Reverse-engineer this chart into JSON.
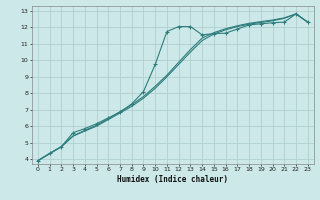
{
  "xlabel": "Humidex (Indice chaleur)",
  "bg_color": "#cce8e8",
  "grid_color": "#aacccc",
  "line_color": "#2e7d7d",
  "xlim": [
    -0.5,
    23.5
  ],
  "ylim": [
    3.7,
    13.3
  ],
  "xticks": [
    0,
    1,
    2,
    3,
    4,
    5,
    6,
    7,
    8,
    9,
    10,
    11,
    12,
    13,
    14,
    15,
    16,
    17,
    18,
    19,
    20,
    21,
    22,
    23
  ],
  "yticks": [
    4,
    5,
    6,
    7,
    8,
    9,
    10,
    11,
    12,
    13
  ],
  "line1_x": [
    0,
    1,
    2,
    3,
    4,
    5,
    6,
    7,
    8,
    9,
    10,
    11,
    12,
    13,
    14,
    15,
    16,
    17,
    18,
    19,
    20,
    21,
    22,
    23
  ],
  "line1_y": [
    3.9,
    4.35,
    4.75,
    5.6,
    5.85,
    6.15,
    6.5,
    6.85,
    7.35,
    8.1,
    9.75,
    11.75,
    12.05,
    12.05,
    11.55,
    11.62,
    11.65,
    11.9,
    12.15,
    12.22,
    12.28,
    12.32,
    12.82,
    12.32
  ],
  "line2_x": [
    0,
    2,
    3,
    4,
    5,
    6,
    7,
    8,
    9,
    10,
    11,
    12,
    13,
    14,
    15,
    16,
    17,
    18,
    19,
    20,
    21,
    22,
    23
  ],
  "line2_y": [
    3.9,
    4.75,
    5.4,
    5.7,
    6.0,
    6.4,
    6.8,
    7.2,
    7.7,
    8.3,
    9.0,
    9.75,
    10.5,
    11.2,
    11.6,
    11.85,
    12.05,
    12.2,
    12.3,
    12.4,
    12.55,
    12.82,
    12.32
  ],
  "line3_x": [
    0,
    2,
    3,
    4,
    5,
    6,
    7,
    8,
    9,
    10,
    11,
    12,
    13,
    14,
    15,
    16,
    17,
    18,
    19,
    20,
    21,
    22,
    23
  ],
  "line3_y": [
    3.9,
    4.75,
    5.4,
    5.75,
    6.05,
    6.45,
    6.88,
    7.3,
    7.8,
    8.42,
    9.1,
    9.88,
    10.65,
    11.35,
    11.68,
    11.92,
    12.1,
    12.25,
    12.35,
    12.45,
    12.58,
    12.82,
    12.32
  ]
}
